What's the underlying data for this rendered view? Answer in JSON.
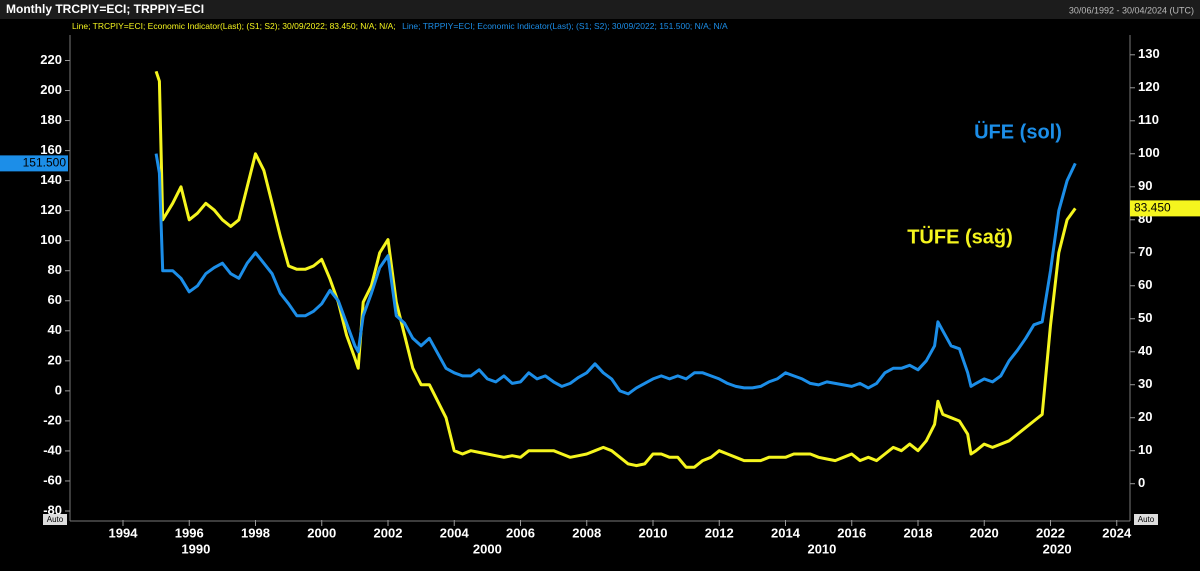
{
  "chart_data": {
    "type": "line",
    "title": "Monthly TRCPIY=ECI; TRPPIY=ECI",
    "date_range": "30/06/1992 - 30/04/2024 (UTC)",
    "annotations": [
      "ÜFE (sol)",
      "TÜFE (sağ)"
    ],
    "auto_buttons": [
      "Auto",
      "Auto"
    ],
    "x": [
      1995.0,
      1995.1,
      1995.2,
      1995.5,
      1995.75,
      1996.0,
      1996.25,
      1996.5,
      1996.75,
      1997.0,
      1997.25,
      1997.5,
      1997.75,
      1998.0,
      1998.25,
      1998.5,
      1998.75,
      1999.0,
      1999.25,
      1999.5,
      1999.75,
      2000.0,
      2000.25,
      2000.5,
      2000.75,
      2001.0,
      2001.1,
      2001.25,
      2001.5,
      2001.75,
      2002.0,
      2002.25,
      2002.5,
      2002.75,
      2003.0,
      2003.25,
      2003.5,
      2003.75,
      2004.0,
      2004.25,
      2004.5,
      2004.75,
      2005.0,
      2005.25,
      2005.5,
      2005.75,
      2006.0,
      2006.25,
      2006.5,
      2006.75,
      2007.0,
      2007.25,
      2007.5,
      2007.75,
      2008.0,
      2008.25,
      2008.5,
      2008.75,
      2009.0,
      2009.25,
      2009.5,
      2009.75,
      2010.0,
      2010.25,
      2010.5,
      2010.75,
      2011.0,
      2011.25,
      2011.5,
      2011.75,
      2012.0,
      2012.25,
      2012.5,
      2012.75,
      2013.0,
      2013.25,
      2013.5,
      2013.75,
      2014.0,
      2014.25,
      2014.5,
      2014.75,
      2015.0,
      2015.25,
      2015.5,
      2015.75,
      2016.0,
      2016.25,
      2016.5,
      2016.75,
      2017.0,
      2017.25,
      2017.5,
      2017.75,
      2018.0,
      2018.25,
      2018.5,
      2018.6,
      2018.75,
      2019.0,
      2019.25,
      2019.5,
      2019.6,
      2019.75,
      2020.0,
      2020.25,
      2020.5,
      2020.75,
      2021.0,
      2021.25,
      2021.5,
      2021.75,
      2022.0,
      2022.25,
      2022.5,
      2022.75
    ],
    "series": [
      {
        "legend": "Line; TRCPIY=ECI; Economic Indicator(Last); (S1; S2); 30/09/2022; 83.450; N/A; N/A;",
        "color": "#f5f51e",
        "axis": "y2",
        "last_label": "83.450",
        "values": [
          125,
          122,
          80,
          85,
          90,
          80,
          82,
          85,
          83,
          80,
          78,
          80,
          90,
          100,
          95,
          85,
          75,
          66,
          65,
          65,
          66,
          68,
          62,
          55,
          45,
          38,
          35,
          55,
          60,
          70,
          74,
          55,
          45,
          35,
          30,
          30,
          25,
          20,
          10,
          9,
          10,
          9.5,
          9,
          8.5,
          8,
          8.5,
          8,
          10,
          10,
          10,
          10,
          9,
          8,
          8.5,
          9,
          10,
          11,
          10,
          8,
          6,
          5.5,
          6,
          9,
          9,
          8,
          8,
          5,
          5,
          7,
          8,
          10,
          9,
          8,
          7,
          7,
          7,
          8,
          8,
          8,
          9,
          9,
          9,
          8,
          7.5,
          7,
          8,
          9,
          7,
          8,
          7,
          9,
          11,
          10,
          12,
          10,
          13,
          18,
          25,
          21,
          20,
          19,
          15,
          9,
          10,
          12,
          11,
          12,
          13,
          15,
          17,
          19,
          21,
          48,
          70,
          80,
          83.45
        ]
      },
      {
        "legend": "Line; TRPPIY=ECI; Economic Indicator(Last); (S1; S2); 30/09/2022; 151.500; N/A; N/A",
        "color": "#1c8ee8",
        "axis": "y",
        "last_label": "151.500",
        "values": [
          158,
          145,
          80,
          80,
          75,
          66,
          70,
          78,
          82,
          85,
          78,
          75,
          85,
          92,
          85,
          78,
          65,
          58,
          50,
          50,
          53,
          58,
          67,
          60,
          45,
          30,
          26,
          50,
          65,
          82,
          90,
          50,
          45,
          35,
          30,
          35,
          25,
          15,
          12,
          10,
          10,
          14,
          8,
          6,
          10,
          5,
          6,
          12,
          8,
          10,
          6,
          3,
          5,
          9,
          12,
          18,
          12,
          8,
          0,
          -2,
          2,
          5,
          8,
          10,
          8,
          10,
          8,
          12,
          12,
          10,
          8,
          5,
          3,
          2,
          2,
          3,
          6,
          8,
          12,
          10,
          8,
          5,
          4,
          6,
          5,
          4,
          3,
          5,
          2,
          5,
          12,
          15,
          15,
          17,
          14,
          20,
          30,
          46,
          40,
          30,
          28,
          12,
          3,
          5,
          8,
          6,
          10,
          20,
          27,
          35,
          44,
          46,
          80,
          120,
          140,
          151.5
        ]
      }
    ],
    "xlim": [
      1992.4,
      2024.4
    ],
    "xticks": [
      1994,
      1996,
      1998,
      2000,
      2002,
      2004,
      2006,
      2008,
      2010,
      2012,
      2014,
      2016,
      2018,
      2020,
      2022,
      2024
    ],
    "xticks2": [
      {
        "value": 1996.2,
        "label": "1990"
      },
      {
        "value": 2005.0,
        "label": "2000"
      },
      {
        "value": 2015.1,
        "label": "2010"
      },
      {
        "value": 2022.2,
        "label": "2020"
      }
    ],
    "ylim": [
      -86,
      237
    ],
    "yticks": [
      -80,
      -60,
      -40,
      -20,
      0,
      20,
      40,
      60,
      80,
      100,
      120,
      140,
      160,
      180,
      200,
      220
    ],
    "y2lim": [
      -11,
      136
    ],
    "y2ticks": [
      0,
      10,
      20,
      30,
      40,
      50,
      60,
      70,
      80,
      90,
      100,
      110,
      120,
      130
    ]
  }
}
